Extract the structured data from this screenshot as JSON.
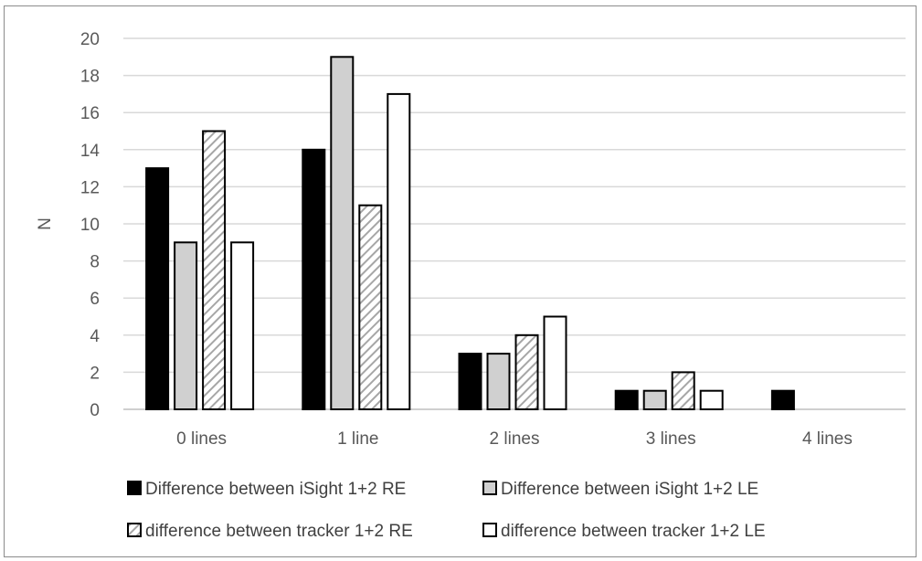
{
  "chart_data": {
    "type": "bar",
    "title": "",
    "xlabel": "",
    "ylabel": "N",
    "ylim": [
      0,
      20
    ],
    "ytick_step": 2,
    "grid": true,
    "legend_position": "bottom",
    "categories": [
      "0 lines",
      "1 line",
      "2 lines",
      "3 lines",
      "4 lines"
    ],
    "series": [
      {
        "name": "Difference between iSight 1+2 RE",
        "fill": "black",
        "values": [
          13,
          14,
          3,
          1,
          1
        ]
      },
      {
        "name": "Difference between iSight 1+2 LE",
        "fill": "lightgray",
        "values": [
          9,
          19,
          3,
          1,
          0
        ]
      },
      {
        "name": "difference between tracker 1+2 RE",
        "fill": "diagonal-hatch",
        "values": [
          15,
          11,
          4,
          2,
          0
        ]
      },
      {
        "name": "difference between tracker 1+2 LE",
        "fill": "white",
        "values": [
          9,
          17,
          5,
          1,
          0
        ]
      }
    ],
    "colors": {
      "black": "#000000",
      "lightgray": "#d0d0d0",
      "white": "#ffffff",
      "hatch_stroke": "#a6a6a6",
      "gridline": "#d9d9d9",
      "axis": "#bfbfbf",
      "outline": "#000000"
    }
  }
}
